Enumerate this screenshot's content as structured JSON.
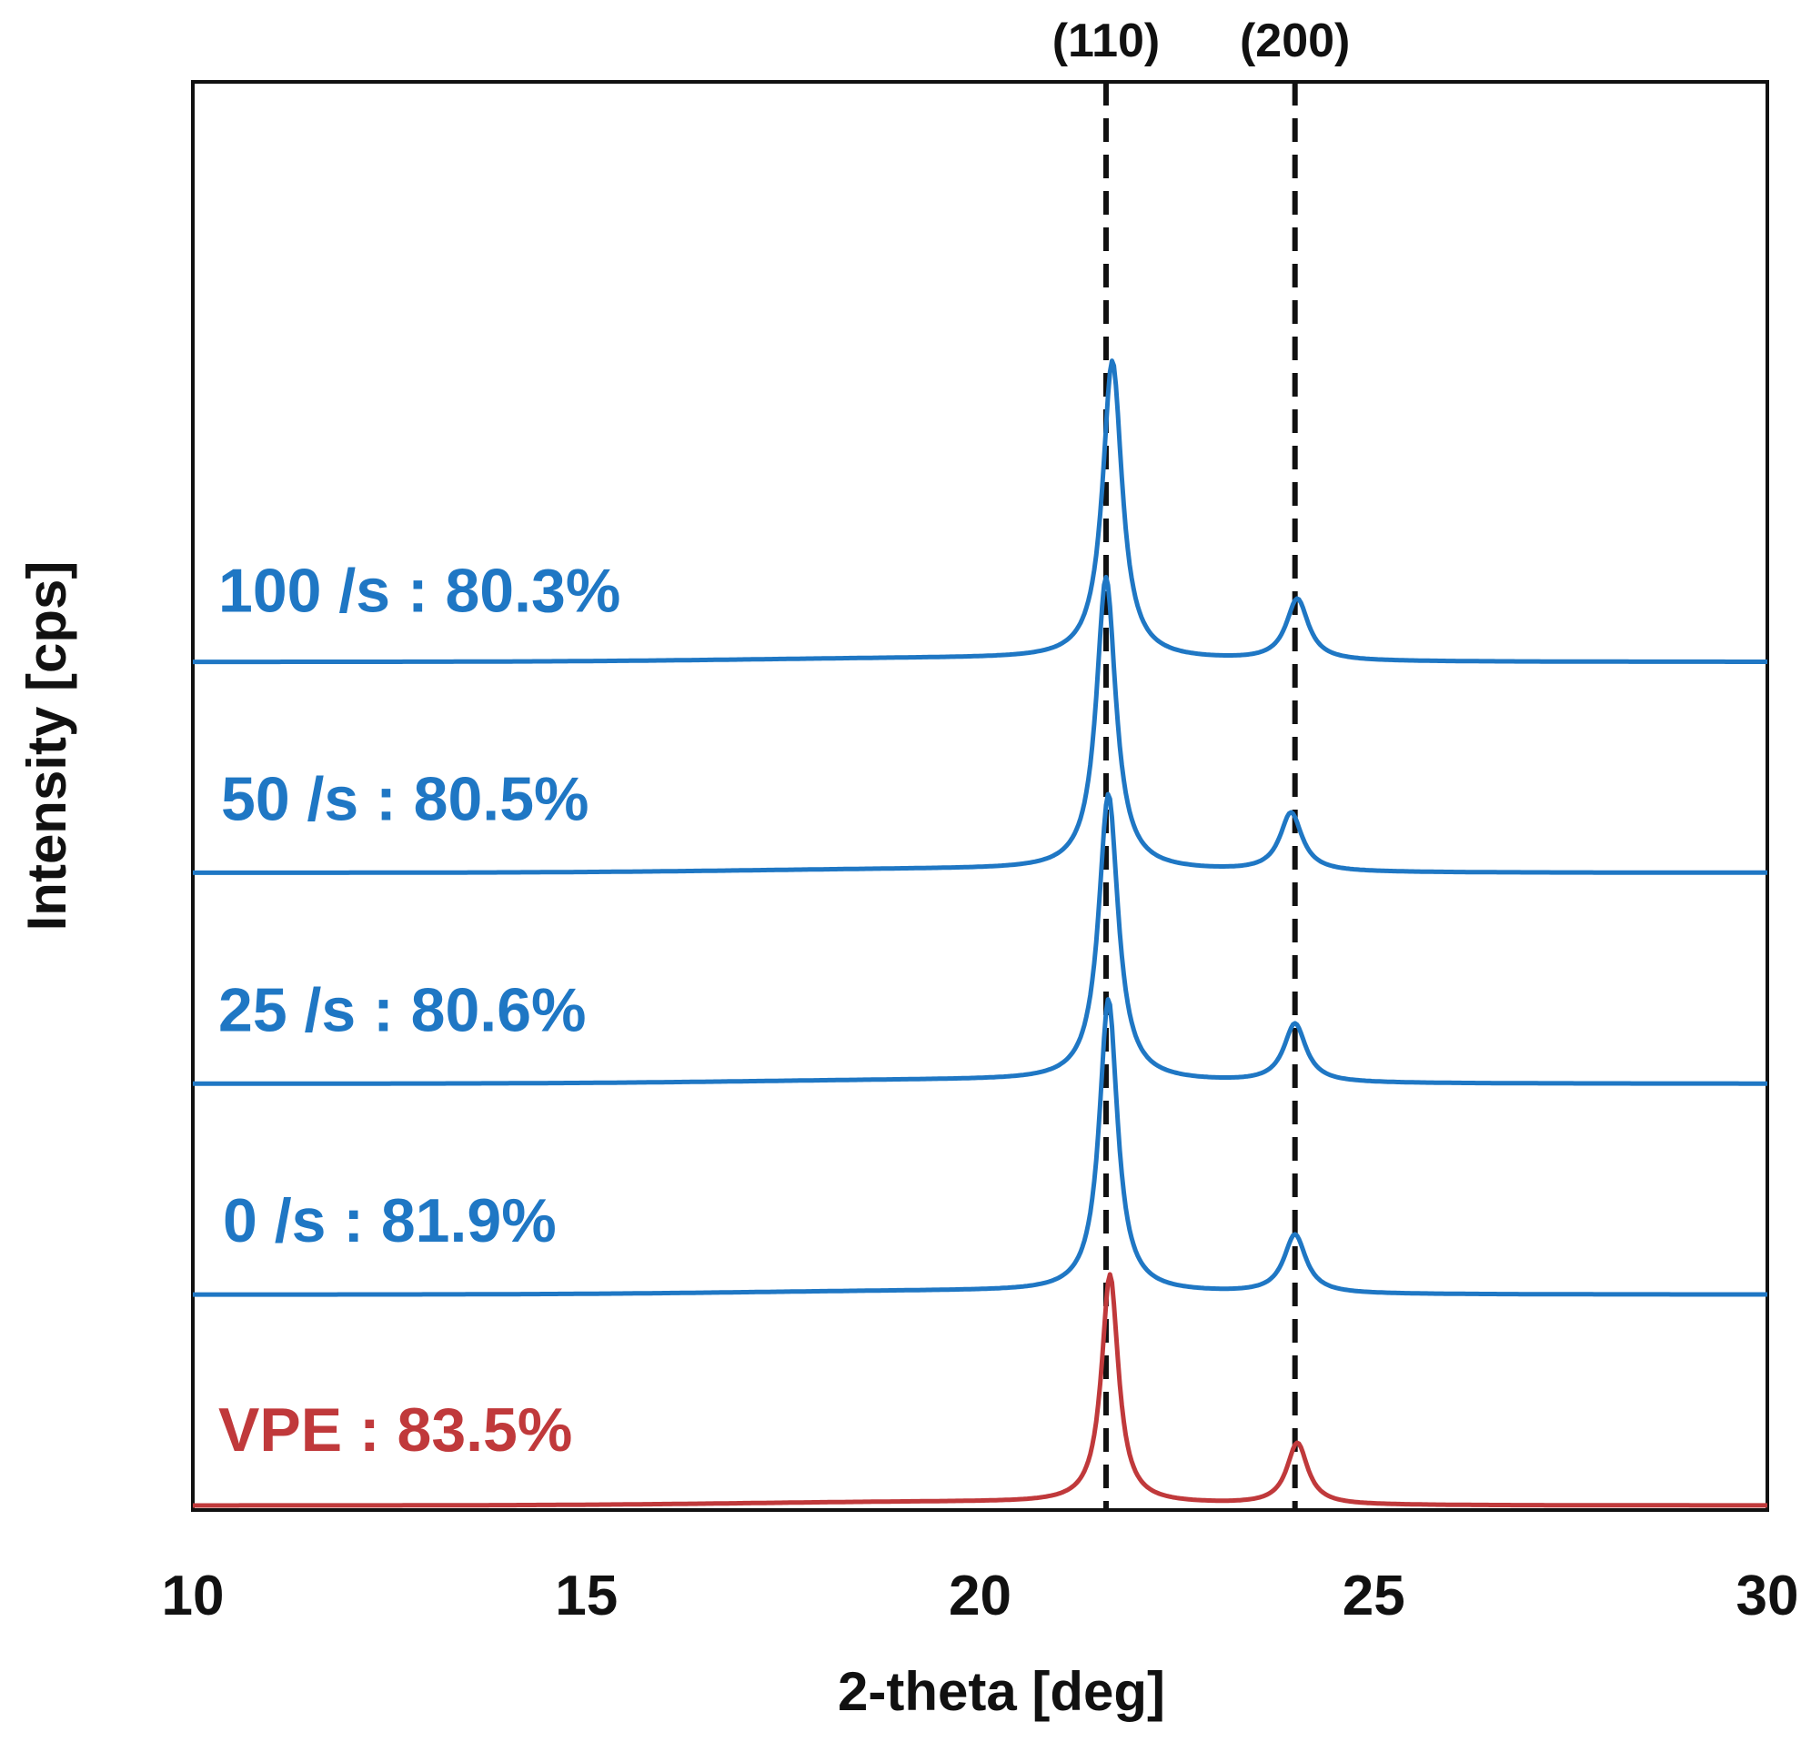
{
  "chart_data": {
    "type": "line",
    "xlabel": "2-theta [deg]",
    "ylabel": "Intensity [cps]",
    "xlim": [
      10,
      30
    ],
    "xticks": [
      "10",
      "15",
      "20",
      "25",
      "30"
    ],
    "y_tick_labels": false,
    "grid": false,
    "legend": "none",
    "reference_lines": [
      {
        "label": "(110)",
        "x": 21.6
      },
      {
        "label": "(200)",
        "x": 24.0
      }
    ],
    "series": [
      {
        "name": "VPE : 83.5%",
        "color": "#c0393b",
        "peak1": {
          "x": 21.65,
          "height": 0.78,
          "width": 0.13
        },
        "peak2": {
          "x": 24.03,
          "height": 0.21,
          "width": 0.16
        },
        "baseline_offset": 0.0
      },
      {
        "name": "0 /s : 81.9%",
        "color": "#1f77c4",
        "peak1": {
          "x": 21.63,
          "height": 1.0,
          "width": 0.14
        },
        "peak2": {
          "x": 24.0,
          "height": 0.2,
          "width": 0.17
        },
        "baseline_offset": 0.72
      },
      {
        "name": "25 /s : 80.6%",
        "color": "#1f77c4",
        "peak1": {
          "x": 21.63,
          "height": 0.98,
          "width": 0.15
        },
        "peak2": {
          "x": 24.0,
          "height": 0.2,
          "width": 0.17
        },
        "baseline_offset": 1.44
      },
      {
        "name": "50 /s : 80.5%",
        "color": "#1f77c4",
        "peak1": {
          "x": 21.6,
          "height": 1.0,
          "width": 0.15
        },
        "peak2": {
          "x": 23.95,
          "height": 0.2,
          "width": 0.17
        },
        "baseline_offset": 2.16
      },
      {
        "name": "100 /s : 80.3%",
        "color": "#1f77c4",
        "peak1": {
          "x": 21.68,
          "height": 1.02,
          "width": 0.15
        },
        "peak2": {
          "x": 24.03,
          "height": 0.21,
          "width": 0.17
        },
        "baseline_offset": 2.88
      }
    ]
  }
}
